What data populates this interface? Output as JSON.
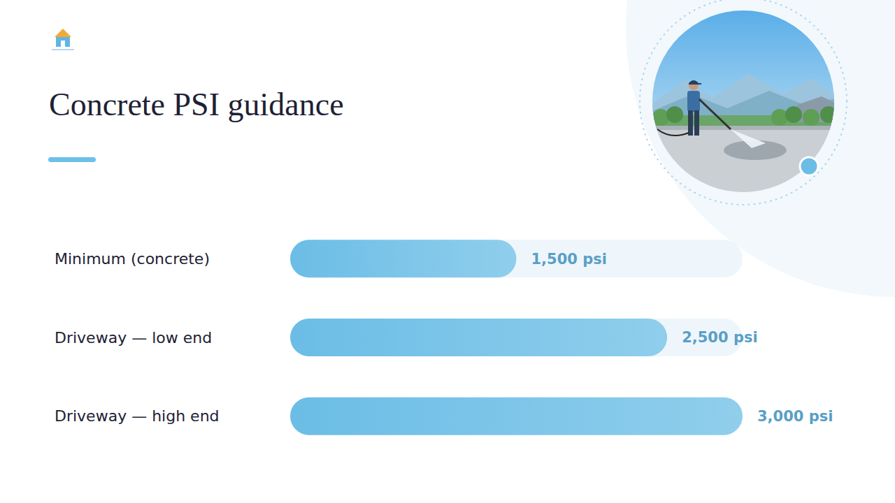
{
  "chart_data": {
    "type": "bar",
    "orientation": "horizontal",
    "title": "Concrete PSI guidance",
    "categories": [
      "Minimum (concrete)",
      "Driveway — low end",
      "Driveway — high end"
    ],
    "values": [
      1500,
      2500,
      3000
    ],
    "value_labels": [
      "1,500 psi",
      "2,500 psi",
      "3,000 psi"
    ],
    "color": "#6bbde6",
    "xlim": [
      0,
      3000
    ],
    "data_labels": true,
    "tick_labels": false,
    "grid": false
  }
}
